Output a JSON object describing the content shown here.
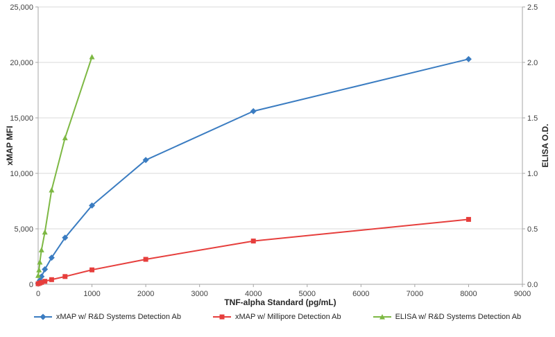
{
  "chart_data": {
    "type": "line",
    "title": "",
    "xlabel": "TNF-alpha Standard (pg/mL)",
    "ylabel_left": "xMAP MFI",
    "ylabel_right": "ELISA O.D.",
    "grid": "horizontal",
    "legend_position": "bottom",
    "gridline_color": "#d9d9d9",
    "axis_color": "#a6a6a6",
    "tick_label_color": "#404040",
    "x_axis": {
      "min": 0,
      "max": 9000,
      "step": 1000,
      "tick_labels": [
        "0",
        "1000",
        "2000",
        "3000",
        "4000",
        "5000",
        "6000",
        "7000",
        "8000",
        "9000"
      ]
    },
    "y_axis_left": {
      "min": 0,
      "max": 25000,
      "step": 5000,
      "tick_labels": [
        "0",
        "5,000",
        "10,000",
        "15,000",
        "20,000",
        "25,000"
      ]
    },
    "y_axis_right": {
      "min": 0,
      "max": 2.5,
      "step": 0.5,
      "tick_labels": [
        "0.0",
        "0.5",
        "1.0",
        "1.5",
        "2.0",
        "2.5"
      ]
    },
    "series": [
      {
        "name": "xMAP w/ R&D Systems Detection Ab",
        "axis": "left",
        "color": "#3A7CC1",
        "marker": "diamond",
        "x": [
          0,
          31,
          62,
          125,
          250,
          500,
          1000,
          2000,
          4000,
          8000
        ],
        "y": [
          100,
          350,
          700,
          1350,
          2400,
          4200,
          7100,
          11200,
          15600,
          20300
        ]
      },
      {
        "name": "xMAP w/ Millipore Detection Ab",
        "axis": "left",
        "color": "#E63E3C",
        "marker": "square",
        "x": [
          0,
          31,
          62,
          125,
          250,
          500,
          1000,
          2000,
          4000,
          8000
        ],
        "y": [
          50,
          110,
          170,
          270,
          420,
          700,
          1300,
          2250,
          3900,
          5850
        ]
      },
      {
        "name": "ELISA w/ R&D Systems Detection Ab",
        "axis": "right",
        "color": "#7DB843",
        "marker": "triangle",
        "x": [
          0,
          16,
          31,
          62,
          125,
          250,
          500,
          1000
        ],
        "y": [
          0.08,
          0.13,
          0.2,
          0.31,
          0.47,
          0.85,
          1.32,
          2.05
        ]
      }
    ]
  }
}
